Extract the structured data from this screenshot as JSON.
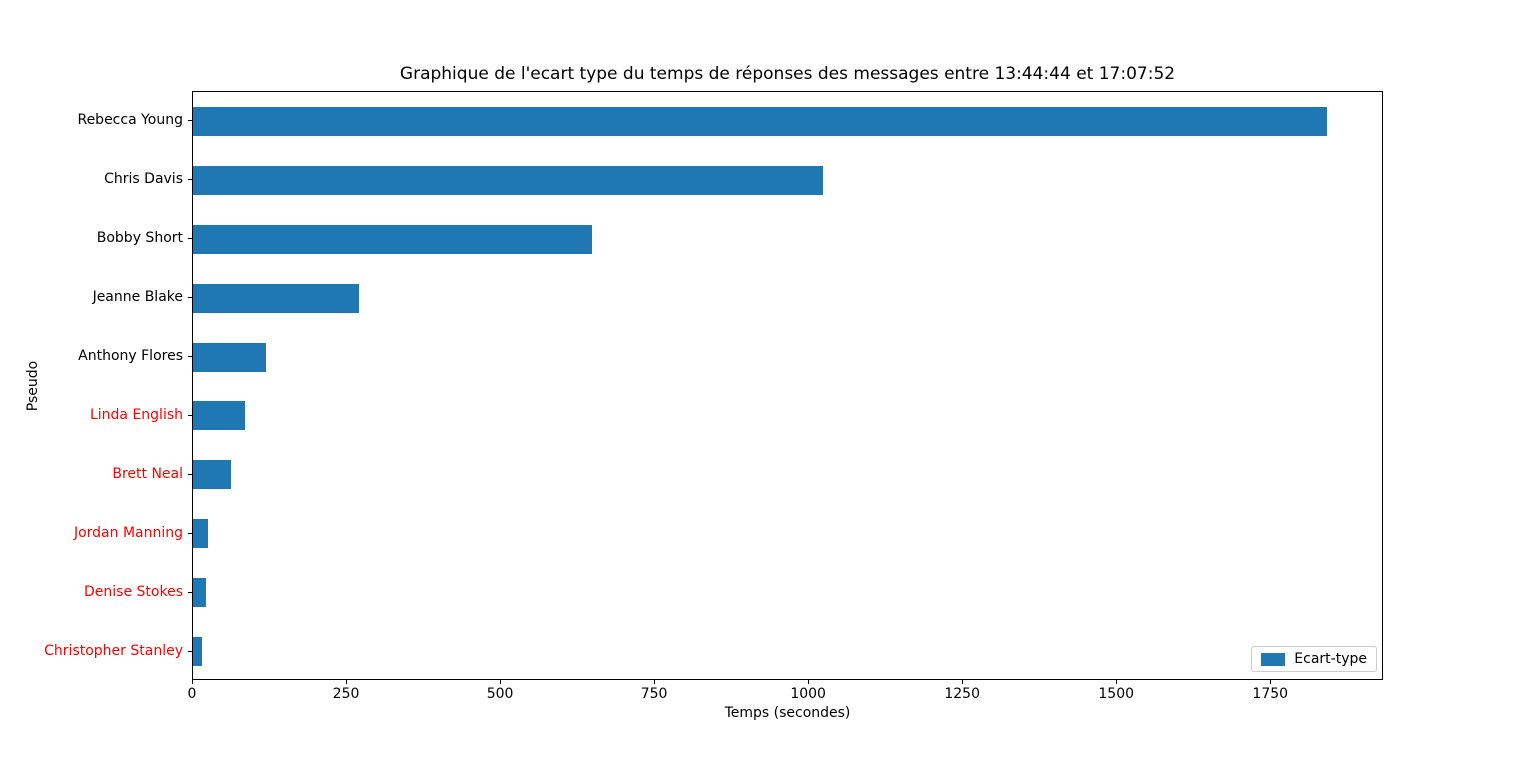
{
  "chart_data": {
    "type": "bar",
    "orientation": "horizontal",
    "title": "Graphique de l'ecart type du temps de réponses des messages entre 13:44:44 et 17:07:52",
    "xlabel": "Temps (secondes)",
    "ylabel": "Pseudo",
    "legend": {
      "label": "Ecart-type",
      "position": "lower right"
    },
    "bar_color": "#1f77b4",
    "axis_color": "#000000",
    "xlim": [
      0,
      1933
    ],
    "x_ticks": [
      0,
      250,
      500,
      750,
      1000,
      1250,
      1500,
      1750
    ],
    "grid": false,
    "bars": [
      {
        "label": "Rebecca Young",
        "value": 1841,
        "label_color": "#000000"
      },
      {
        "label": "Chris Davis",
        "value": 1022,
        "label_color": "#000000"
      },
      {
        "label": "Bobby Short",
        "value": 648,
        "label_color": "#000000"
      },
      {
        "label": "Jeanne Blake",
        "value": 269,
        "label_color": "#000000"
      },
      {
        "label": "Anthony Flores",
        "value": 119,
        "label_color": "#000000"
      },
      {
        "label": "Linda English",
        "value": 85,
        "label_color": "#ff0000"
      },
      {
        "label": "Brett Neal",
        "value": 62,
        "label_color": "#ff0000"
      },
      {
        "label": "Jordan Manning",
        "value": 24,
        "label_color": "#ff0000"
      },
      {
        "label": "Denise Stokes",
        "value": 21,
        "label_color": "#ff0000"
      },
      {
        "label": "Christopher Stanley",
        "value": 15,
        "label_color": "#ff0000"
      }
    ]
  }
}
